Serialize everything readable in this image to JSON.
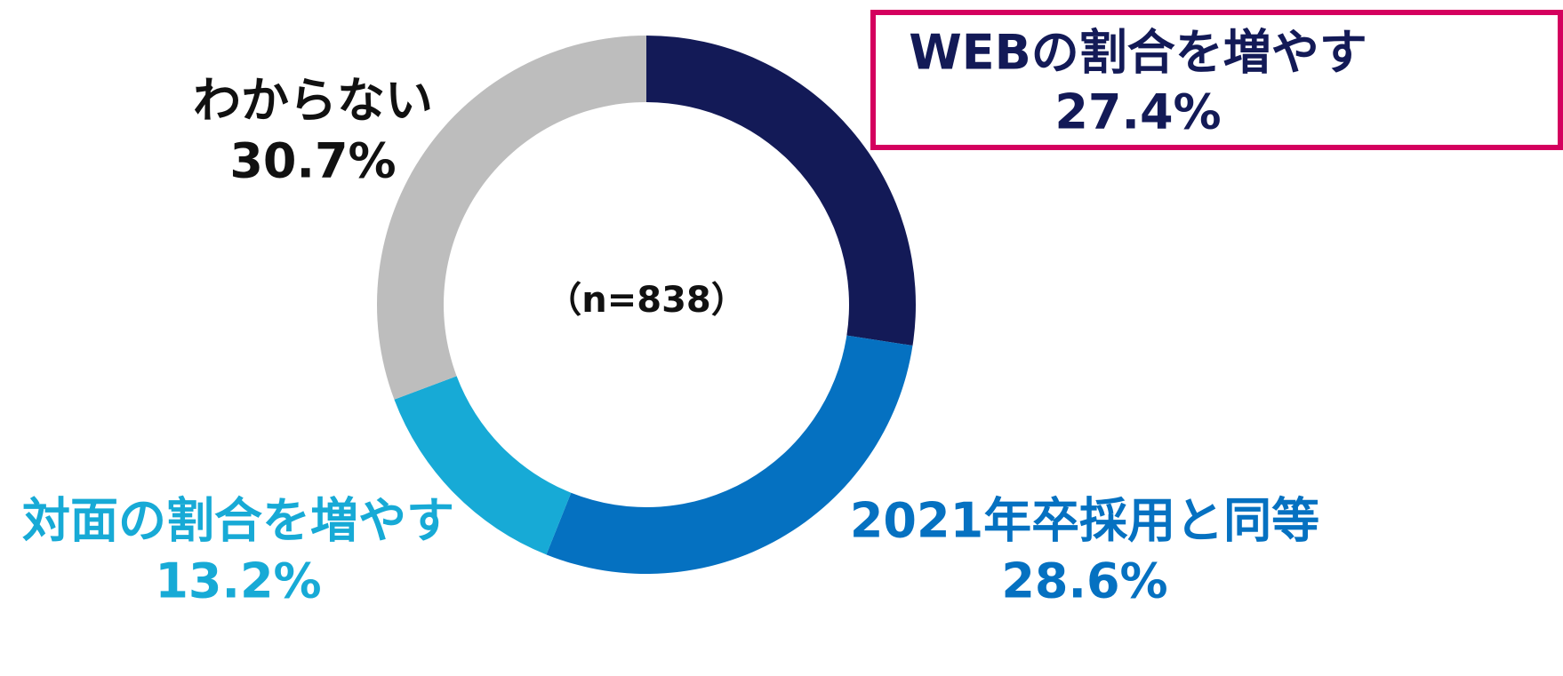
{
  "chart_data": {
    "type": "donut",
    "center_label": "（n=838）",
    "categories": [
      "WEBの割合を増やす",
      "2021年卒採用と同等",
      "対面の割合を増やす",
      "わからない"
    ],
    "values": [
      27.4,
      28.6,
      13.2,
      30.7
    ],
    "value_labels": [
      "27.4%",
      "28.6%",
      "13.2%",
      "30.7%"
    ],
    "colors": [
      "#131a57",
      "#0571c1",
      "#17aad6",
      "#bdbdbd"
    ],
    "label_colors": [
      "#131a57",
      "#0571c1",
      "#17aad6",
      "#111111"
    ],
    "highlight_color": "#d4005e"
  }
}
